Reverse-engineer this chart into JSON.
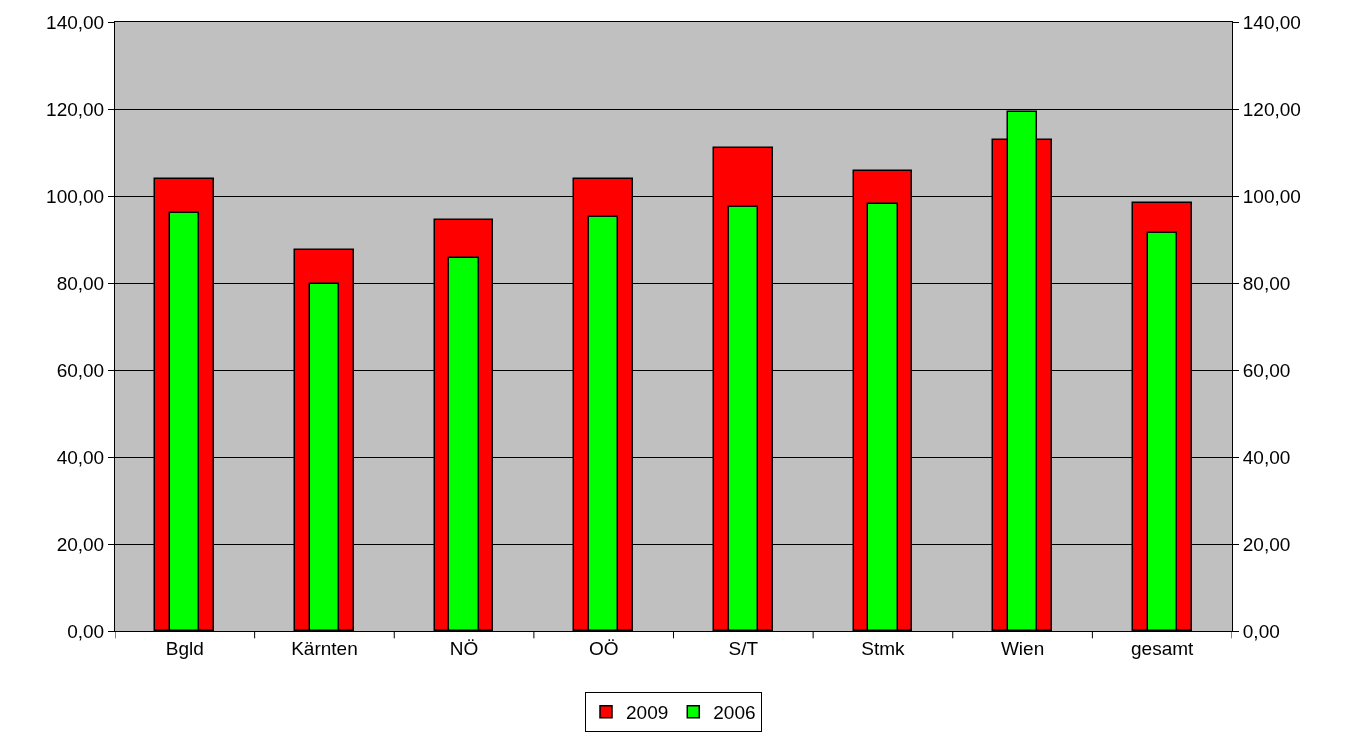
{
  "chart_data": {
    "type": "bar",
    "categories": [
      "Bgld",
      "Kärnten",
      "NÖ",
      "OÖ",
      "S/T",
      "Stmk",
      "Wien",
      "gesamt"
    ],
    "series": [
      {
        "name": "2009",
        "color": "#ff0000",
        "values": [
          103.8,
          87.7,
          94.5,
          103.9,
          111.1,
          105.7,
          112.8,
          98.3
        ]
      },
      {
        "name": "2006",
        "color": "#00ff00",
        "values": [
          96.1,
          79.8,
          85.7,
          95.2,
          97.5,
          98.1,
          119.2,
          91.5
        ]
      }
    ],
    "ylim": [
      0,
      140
    ],
    "yticks": [
      {
        "value": 0,
        "label": "0,00"
      },
      {
        "value": 20,
        "label": "20,00"
      },
      {
        "value": 40,
        "label": "40,00"
      },
      {
        "value": 60,
        "label": "60,00"
      },
      {
        "value": 80,
        "label": "80,00"
      },
      {
        "value": 100,
        "label": "100,00"
      },
      {
        "value": 120,
        "label": "120,00"
      },
      {
        "value": 140,
        "label": "140,00"
      }
    ],
    "y2lim": [
      0,
      140
    ],
    "y2ticks": [
      {
        "value": 0,
        "label": "0,00"
      },
      {
        "value": 20,
        "label": "20,00"
      },
      {
        "value": 40,
        "label": "40,00"
      },
      {
        "value": 60,
        "label": "60,00"
      },
      {
        "value": 80,
        "label": "80,00"
      },
      {
        "value": 100,
        "label": "100,00"
      },
      {
        "value": 120,
        "label": "120,00"
      },
      {
        "value": 140,
        "label": "140,00"
      }
    ],
    "grid": "y",
    "legend": "bottom"
  }
}
